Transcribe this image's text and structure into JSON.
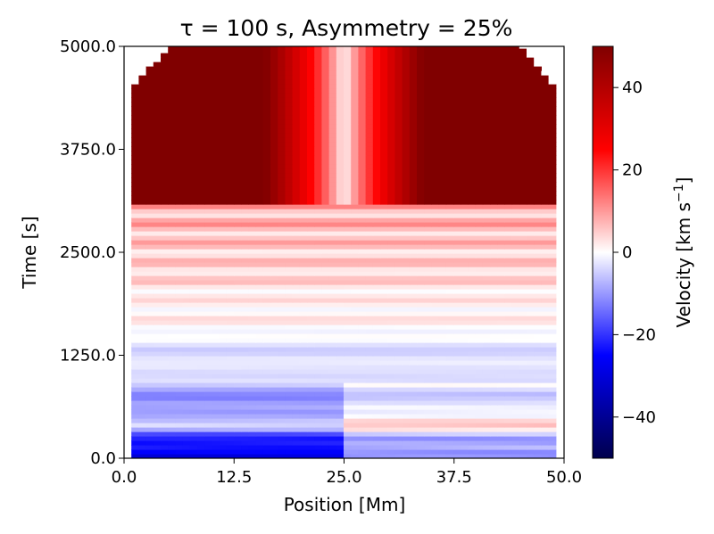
{
  "chart_data": {
    "type": "heatmap",
    "title": "τ = 100 s, Asymmetry = 25%",
    "xlabel": "Position [Mm]",
    "ylabel": "Time [s]",
    "xlim": [
      0.0,
      50.0
    ],
    "ylim": [
      0.0,
      5000.0
    ],
    "x_ticks": [
      0.0,
      12.5,
      25.0,
      37.5,
      50.0
    ],
    "x_tick_labels": [
      "0.0",
      "12.5",
      "25.0",
      "37.5",
      "50.0"
    ],
    "y_ticks": [
      0.0,
      1250.0,
      2500.0,
      3750.0,
      5000.0
    ],
    "y_tick_labels": [
      "0.0",
      "1250.0",
      "2500.0",
      "3750.0",
      "5000.0"
    ],
    "colorbar": {
      "label": "Velocity [km s",
      "label_superscript": "−1",
      "label_close": "]",
      "range": [
        -50,
        50
      ],
      "ticks": [
        -40,
        -20,
        0,
        20,
        40
      ],
      "tick_labels": [
        "−40",
        "−20",
        "0",
        "20",
        "40"
      ],
      "colormap": "seismic",
      "colors": {
        "low": "#00004c",
        "mid_low": "#0000ff",
        "zero": "#ffffff",
        "mid_high": "#ff0000",
        "high": "#800000"
      }
    },
    "features": {
      "domain_edges_mm": [
        1.0,
        49.0
      ],
      "shock_arrival_time_s": 3100,
      "late_flow_velocity_km_s": 50,
      "centre_position_mm": 25.0,
      "early_oscillation_amplitude_km_s": 40
    }
  }
}
